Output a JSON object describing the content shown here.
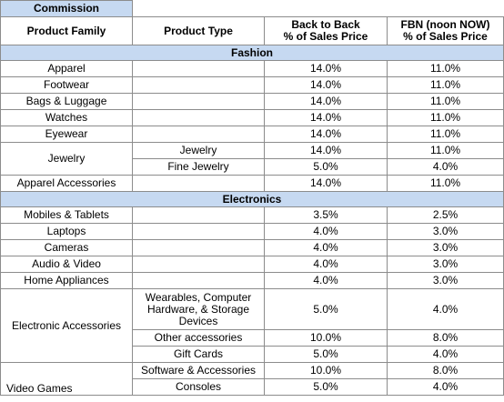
{
  "title": "Commission",
  "headers": [
    "Product Family",
    "Product Type",
    "Back to Back\n% of Sales Price",
    "FBN (noon NOW)\n% of Sales Price"
  ],
  "sections": [
    {
      "name": "Fashion",
      "families": [
        {
          "family": "Apparel",
          "items": [
            {
              "b2b": "14.0%",
              "fbn": "11.0%"
            }
          ]
        },
        {
          "family": "Footwear",
          "items": [
            {
              "b2b": "14.0%",
              "fbn": "11.0%"
            }
          ]
        },
        {
          "family": "Bags & Luggage",
          "items": [
            {
              "b2b": "14.0%",
              "fbn": "11.0%"
            }
          ]
        },
        {
          "family": "Watches",
          "items": [
            {
              "b2b": "14.0%",
              "fbn": "11.0%"
            }
          ]
        },
        {
          "family": "Eyewear",
          "items": [
            {
              "b2b": "14.0%",
              "fbn": "11.0%"
            }
          ]
        },
        {
          "family": "Jewelry",
          "items": [
            {
              "type": "Jewelry",
              "b2b": "14.0%",
              "fbn": "11.0%"
            },
            {
              "type": "Fine Jewelry",
              "b2b": "5.0%",
              "fbn": "4.0%"
            }
          ]
        },
        {
          "family": "Apparel Accessories",
          "items": [
            {
              "b2b": "14.0%",
              "fbn": "11.0%"
            }
          ]
        }
      ]
    },
    {
      "name": "Electronics",
      "families": [
        {
          "family": "Mobiles & Tablets",
          "items": [
            {
              "b2b": "3.5%",
              "fbn": "2.5%"
            }
          ]
        },
        {
          "family": "Laptops",
          "items": [
            {
              "b2b": "4.0%",
              "fbn": "3.0%"
            }
          ]
        },
        {
          "family": "Cameras",
          "items": [
            {
              "b2b": "4.0%",
              "fbn": "3.0%"
            }
          ]
        },
        {
          "family": "Audio & Video",
          "items": [
            {
              "b2b": "4.0%",
              "fbn": "3.0%"
            }
          ]
        },
        {
          "family": "Home Appliances",
          "items": [
            {
              "b2b": "4.0%",
              "fbn": "3.0%"
            }
          ]
        },
        {
          "family": "Electronic Accessories",
          "items": [
            {
              "type": "Wearables, Computer Hardware, & Storage Devices",
              "b2b": "5.0%",
              "fbn": "4.0%"
            },
            {
              "type": "Other accessories",
              "b2b": "10.0%",
              "fbn": "8.0%"
            },
            {
              "type": "Gift Cards",
              "b2b": "5.0%",
              "fbn": "4.0%"
            }
          ]
        },
        {
          "family": "Video Games",
          "items": [
            {
              "type": "Software & Accessories",
              "b2b": "10.0%",
              "fbn": "8.0%"
            },
            {
              "type": "Consoles",
              "b2b": "5.0%",
              "fbn": "4.0%"
            }
          ]
        }
      ]
    }
  ]
}
